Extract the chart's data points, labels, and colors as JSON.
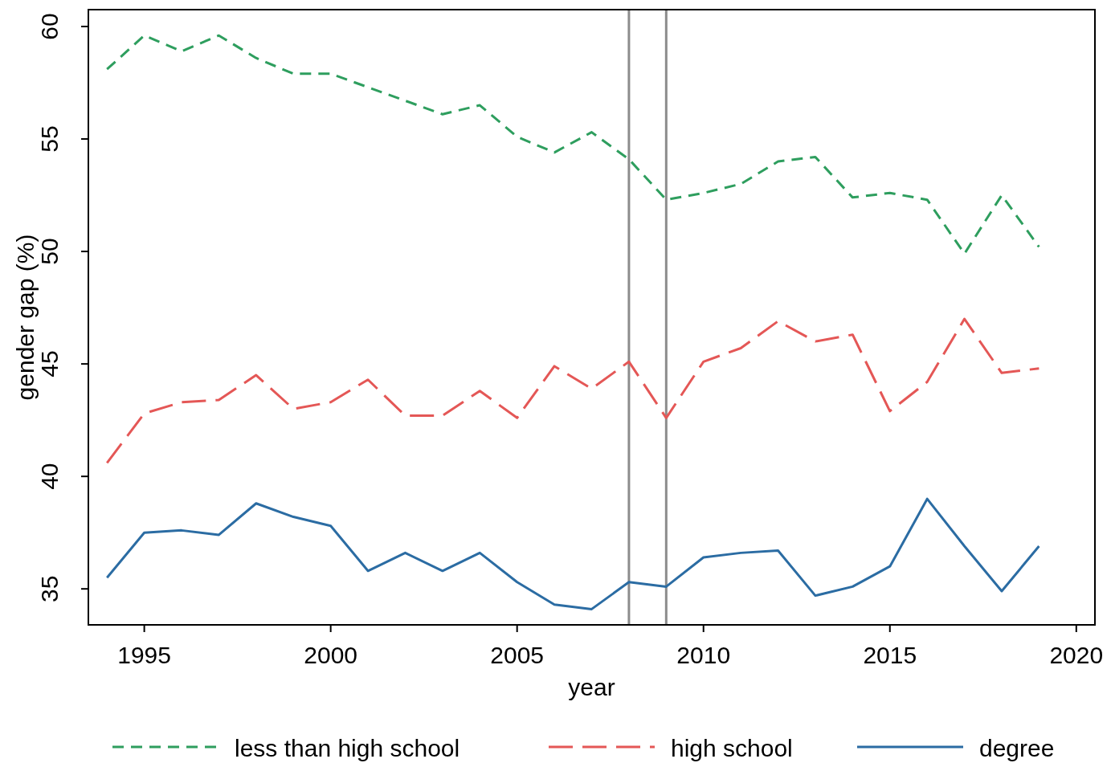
{
  "chart_data": {
    "type": "line",
    "xlabel": "year",
    "ylabel": "gender gap (%)",
    "x": [
      1994,
      1995,
      1996,
      1997,
      1998,
      1999,
      2000,
      2001,
      2002,
      2003,
      2004,
      2005,
      2006,
      2007,
      2008,
      2009,
      2010,
      2011,
      2012,
      2013,
      2014,
      2015,
      2016,
      2017,
      2018,
      2019
    ],
    "series": [
      {
        "name": "less than high school",
        "color": "#2e9e5e",
        "line_style": "dashed",
        "values": [
          58.1,
          59.6,
          58.9,
          59.6,
          58.6,
          57.9,
          57.9,
          57.3,
          56.7,
          56.1,
          56.5,
          55.1,
          54.4,
          55.3,
          54.1,
          52.3,
          52.6,
          53.0,
          54.0,
          54.2,
          52.4,
          52.6,
          52.3,
          49.9,
          52.5,
          50.2
        ]
      },
      {
        "name": "high school",
        "color": "#e45756",
        "line_style": "dashed",
        "values": [
          40.6,
          42.8,
          43.3,
          43.4,
          44.5,
          43.0,
          43.3,
          44.3,
          42.7,
          42.7,
          43.8,
          42.6,
          44.9,
          43.9,
          45.1,
          42.6,
          45.1,
          45.7,
          46.9,
          46.0,
          46.3,
          42.9,
          44.2,
          47.0,
          44.6,
          44.8
        ]
      },
      {
        "name": "degree",
        "color": "#2b6ca3",
        "line_style": "solid",
        "values": [
          35.5,
          37.5,
          37.6,
          37.4,
          38.8,
          38.2,
          37.8,
          35.8,
          36.6,
          35.8,
          36.6,
          35.3,
          34.3,
          34.1,
          35.3,
          35.1,
          36.4,
          36.6,
          36.7,
          34.7,
          35.1,
          36.0,
          39.0,
          36.9,
          34.9,
          36.9
        ]
      }
    ],
    "xlim": [
      1993.5,
      2020.5
    ],
    "xticks": [
      1995,
      2000,
      2005,
      2010,
      2015,
      2020
    ],
    "ylim": [
      33.4,
      60.75
    ],
    "yticks": [
      35,
      40,
      45,
      50,
      55,
      60
    ],
    "ref_lines": [
      {
        "axis": "x",
        "value": 2008,
        "color": "#8c8c8c"
      },
      {
        "axis": "x",
        "value": 2009,
        "color": "#8c8c8c"
      }
    ],
    "grid": false,
    "legend": "bottom"
  }
}
